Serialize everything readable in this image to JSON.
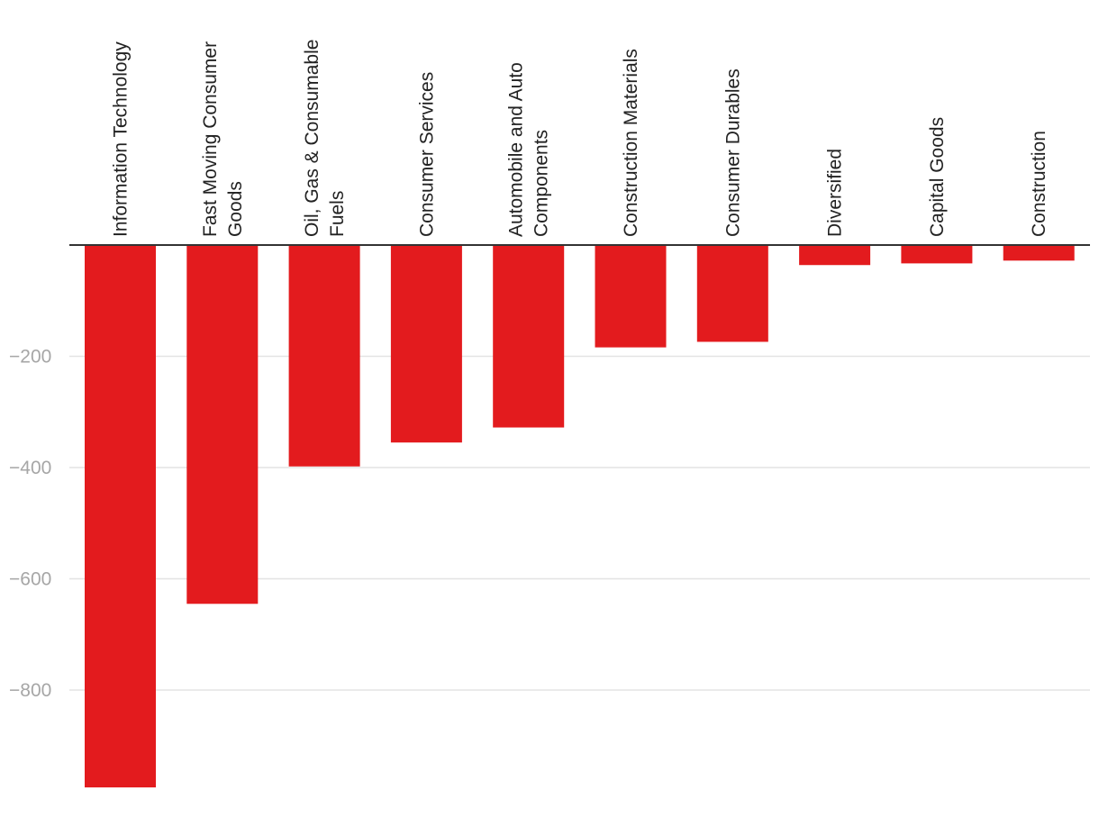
{
  "chart_data": {
    "type": "bar",
    "title": "",
    "xlabel": "",
    "ylabel": "",
    "categories": [
      [
        "Information Technology"
      ],
      [
        "Fast Moving Consumer",
        "Goods"
      ],
      [
        "Oil, Gas & Consumable",
        "Fuels"
      ],
      [
        "Consumer Services"
      ],
      [
        "Automobile and Auto",
        "Components"
      ],
      [
        "Construction Materials"
      ],
      [
        "Consumer Durables"
      ],
      [
        "Diversified"
      ],
      [
        "Capital Goods"
      ],
      [
        "Construction"
      ]
    ],
    "values": [
      -975,
      -645,
      -398,
      -355,
      -328,
      -184,
      -174,
      -36,
      -33,
      -28
    ],
    "ylim": [
      -1000,
      0
    ],
    "yticks": [
      -200,
      -400,
      -600,
      -800
    ],
    "ytick_labels": [
      "−200",
      "−400",
      "−600",
      "−800"
    ],
    "bar_color": "#e31b1e",
    "grid": true
  }
}
